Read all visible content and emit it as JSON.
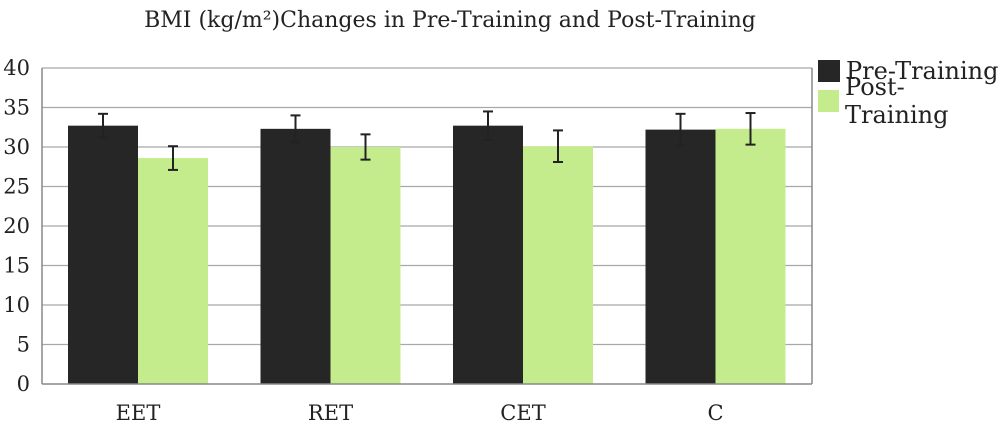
{
  "chart_data": {
    "type": "bar",
    "title": "BMI (kg/m²)Changes in Pre-Training and Post-Training",
    "categories": [
      "EET",
      "RET",
      "CET",
      "C"
    ],
    "series": [
      {
        "name": "Pre-Training",
        "color": "#262626",
        "values": [
          32.7,
          32.3,
          32.7,
          32.2
        ],
        "errors": [
          1.5,
          1.7,
          1.8,
          2.0
        ]
      },
      {
        "name": "Post-Training",
        "color": "#c4ec8c",
        "values": [
          28.6,
          30.0,
          30.1,
          32.3
        ],
        "errors": [
          1.5,
          1.6,
          2.0,
          2.0
        ]
      }
    ],
    "ylim": [
      0,
      40
    ],
    "yticks": [
      0,
      5,
      10,
      15,
      20,
      25,
      30,
      35,
      40
    ],
    "grid": true,
    "legend_position": "right",
    "xlabel": "",
    "ylabel": ""
  }
}
